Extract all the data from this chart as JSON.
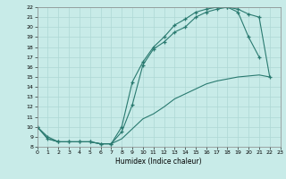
{
  "xlabel": "Humidex (Indice chaleur)",
  "bg_color": "#c8ebe8",
  "grid_color": "#aed8d4",
  "line_color": "#2a7a70",
  "xlim": [
    0,
    23
  ],
  "ylim": [
    8,
    22
  ],
  "xticks": [
    0,
    1,
    2,
    3,
    4,
    5,
    6,
    7,
    8,
    9,
    10,
    11,
    12,
    13,
    14,
    15,
    16,
    17,
    18,
    19,
    20,
    21,
    22,
    23
  ],
  "yticks": [
    8,
    9,
    10,
    11,
    12,
    13,
    14,
    15,
    16,
    17,
    18,
    19,
    20,
    21,
    22
  ],
  "line1_x": [
    0,
    1,
    2,
    3,
    4,
    5,
    6,
    7,
    8,
    9,
    10,
    11,
    12,
    13,
    14,
    15,
    16,
    17,
    18,
    19,
    20,
    21
  ],
  "line1_y": [
    10,
    9,
    8.5,
    8.5,
    8.5,
    8.5,
    8.3,
    8.3,
    9.5,
    12.2,
    16.2,
    17.8,
    18.5,
    19.5,
    20.0,
    21.0,
    21.5,
    21.8,
    22.0,
    21.5,
    19.0,
    17.0
  ],
  "line2_x": [
    0,
    1,
    2,
    3,
    4,
    5,
    6,
    7,
    8,
    9,
    10,
    11,
    12,
    13,
    14,
    15,
    16,
    17,
    18,
    19,
    20,
    21,
    22
  ],
  "line2_y": [
    10,
    8.8,
    8.5,
    8.5,
    8.5,
    8.5,
    8.3,
    8.3,
    10.0,
    14.5,
    16.5,
    18.0,
    19.0,
    20.2,
    20.8,
    21.5,
    21.8,
    22.0,
    22.0,
    21.8,
    21.3,
    21.0,
    15.0
  ],
  "line3_x": [
    0,
    1,
    2,
    3,
    4,
    5,
    6,
    7,
    8,
    9,
    10,
    11,
    12,
    13,
    14,
    15,
    16,
    17,
    18,
    19,
    20,
    21,
    22
  ],
  "line3_y": [
    10,
    8.8,
    8.5,
    8.5,
    8.5,
    8.5,
    8.3,
    8.3,
    8.8,
    9.8,
    10.8,
    11.3,
    12.0,
    12.8,
    13.3,
    13.8,
    14.3,
    14.6,
    14.8,
    15.0,
    15.1,
    15.2,
    15.0
  ]
}
